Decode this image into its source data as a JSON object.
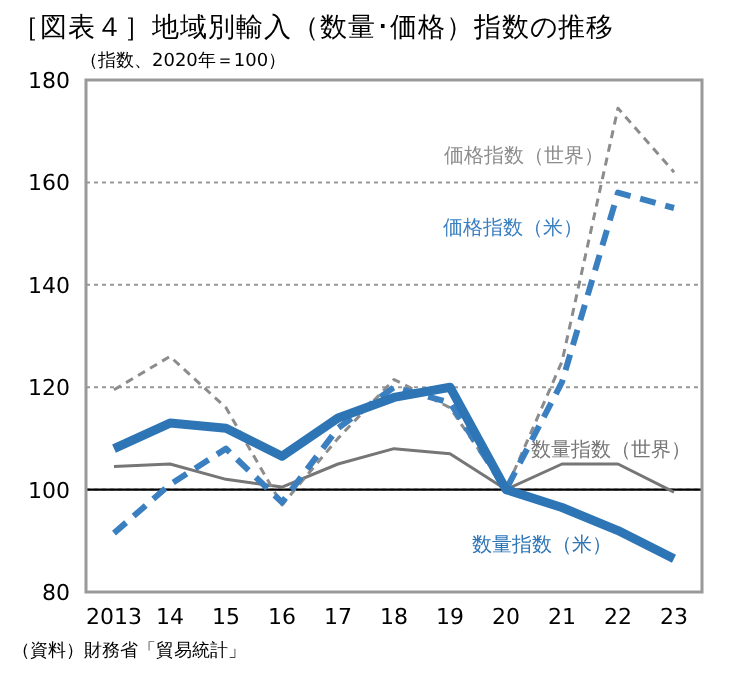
{
  "chart_data": {
    "type": "line",
    "title": "［図表４］地域別輸入（数量･価格）指数の推移",
    "ylabel": "（指数、2020年＝100）",
    "annotations": [
      "（資料）財務省「貿易統計」"
    ],
    "categories": [
      "2013",
      "14",
      "15",
      "16",
      "17",
      "18",
      "19",
      "20",
      "21",
      "22",
      "23"
    ],
    "ylim": [
      80,
      180
    ],
    "yticks": [
      80,
      100,
      120,
      140,
      160,
      180
    ],
    "grid": "y",
    "ref_lines": [
      {
        "axis": "y",
        "value": 100,
        "color": "#000000"
      }
    ],
    "series": [
      {
        "name": "数量指数（世界）",
        "color": "#767676",
        "line_style": "solid",
        "values": [
          104.5,
          105,
          102,
          100.5,
          105,
          108,
          107,
          100,
          105,
          105,
          99.5
        ]
      },
      {
        "name": "価格指数（世界）",
        "color": "#8c8c8c",
        "line_style": "dashed",
        "values": [
          119.5,
          126,
          116,
          97,
          110,
          121.5,
          116,
          100,
          125,
          174.5,
          162
        ]
      },
      {
        "name": "価格指数（米）",
        "color": "#3a7fc0",
        "line_style": "dashed",
        "values": [
          91.5,
          101,
          108,
          97.5,
          112,
          120,
          117,
          100,
          121,
          158,
          155
        ]
      },
      {
        "name": "数量指数（米）",
        "color": "#2e75b6",
        "line_style": "solid",
        "values": [
          108,
          113,
          112,
          106.5,
          114,
          118,
          120,
          100,
          96.5,
          92,
          86.5
        ]
      }
    ]
  }
}
